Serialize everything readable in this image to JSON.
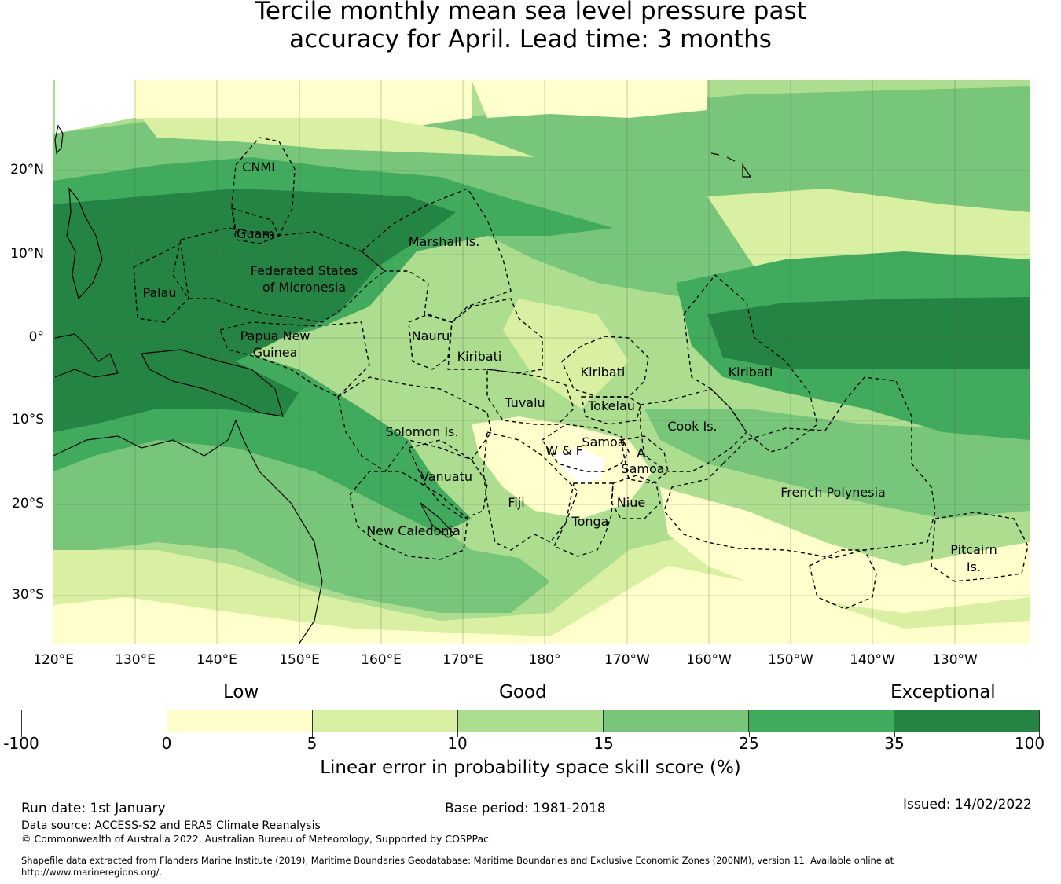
{
  "title_line1": "Tercile monthly mean sea level pressure past",
  "title_line2": "accuracy for April. Lead time: 3 months",
  "map": {
    "lon_labels": [
      "120°E",
      "130°E",
      "140°E",
      "150°E",
      "160°E",
      "170°E",
      "180°",
      "170°W",
      "160°W",
      "150°W",
      "140°W",
      "130°W"
    ],
    "lat_labels": [
      "20°N",
      "10°N",
      "0°",
      "10°S",
      "20°S",
      "30°S"
    ],
    "regions": [
      "CNMI",
      "Guam",
      "Marshall Is.",
      "Federated States",
      "of Micronesia",
      "Palau",
      "Papua New",
      "Guinea",
      "Nauru",
      "Kiribati",
      "Kiribati",
      "Kiribati",
      "Tuvalu",
      "Tokelau",
      "Cook Is.",
      "Solomon Is.",
      "Samoa",
      "W & F",
      "A.",
      "Samoa",
      "Vanuatu",
      "Fiji",
      "Niue",
      "Tonga",
      "French Polynesia",
      "New Caledonia",
      "Pitcairn",
      "Is."
    ]
  },
  "legend": {
    "categories": [
      "Low",
      "Good",
      "Exceptional"
    ],
    "colors": [
      "#ffffff",
      "#ffffcc",
      "#d9f0a3",
      "#addd8e",
      "#78c679",
      "#41ab5d",
      "#238443"
    ],
    "ticks": [
      "-100",
      "0",
      "5",
      "10",
      "15",
      "25",
      "35",
      "100"
    ],
    "title": "Linear error in probability space skill score (%)"
  },
  "footer": {
    "run_date": "Run date: 1st January",
    "base_period": "Base period: 1981-2018",
    "issued": "Issued: 14/02/2022",
    "data_source": "Data source: ACCESS-S2 and ERA5 Climate Reanalysis",
    "copyright": "© Commonwealth of Australia 2022, Australian Bureau of Meteorology, Supported by COSPPac",
    "shapefile_line1": "Shapefile data extracted from Flanders Marine Institute (2019), Maritime Boundaries Geodatabase: Maritime Boundaries and Exclusive Economic Zones (200NM), version 11. Available online at",
    "shapefile_line2": "http://www.marineregions.org/."
  }
}
